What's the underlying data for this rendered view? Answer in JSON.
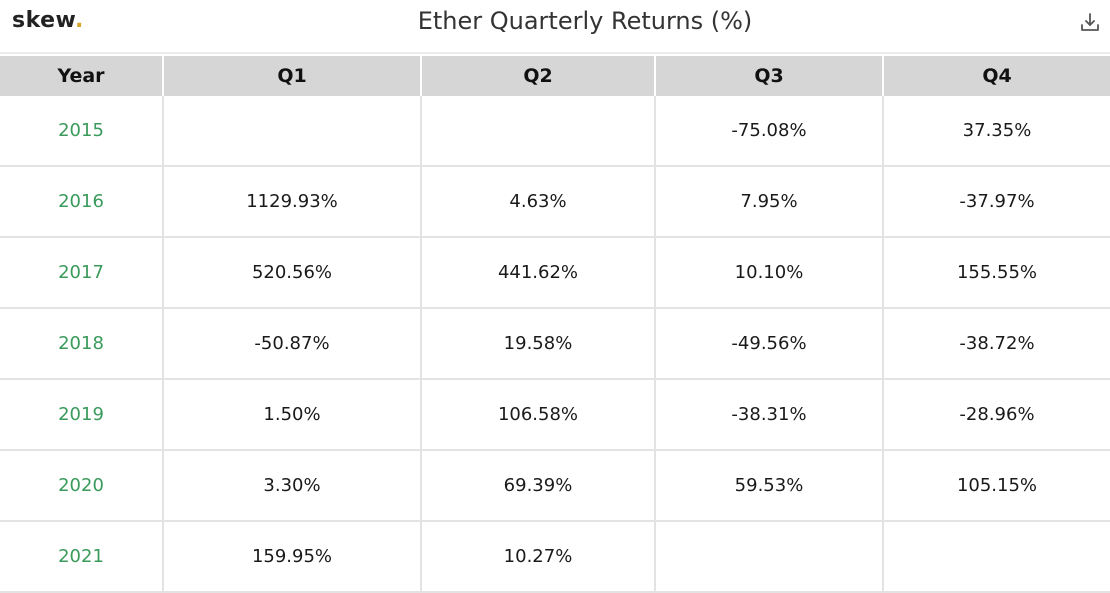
{
  "header": {
    "logo_text": "skew",
    "logo_dot": ".",
    "title": "Ether Quarterly Returns (%)",
    "download_icon": "download-icon"
  },
  "colors": {
    "year_text": "#3a9a5b",
    "logo_dot": "#d4a72c",
    "header_bg": "#d6d6d6"
  },
  "chart_data": {
    "type": "table",
    "title": "Ether Quarterly Returns (%)",
    "columns": [
      "Year",
      "Q1",
      "Q2",
      "Q3",
      "Q4"
    ],
    "rows": [
      {
        "year": "2015",
        "q1": "",
        "q2": "",
        "q3": "-75.08%",
        "q4": "37.35%"
      },
      {
        "year": "2016",
        "q1": "1129.93%",
        "q2": "4.63%",
        "q3": "7.95%",
        "q4": "-37.97%"
      },
      {
        "year": "2017",
        "q1": "520.56%",
        "q2": "441.62%",
        "q3": "10.10%",
        "q4": "155.55%"
      },
      {
        "year": "2018",
        "q1": "-50.87%",
        "q2": "19.58%",
        "q3": "-49.56%",
        "q4": "-38.72%"
      },
      {
        "year": "2019",
        "q1": "1.50%",
        "q2": "106.58%",
        "q3": "-38.31%",
        "q4": "-28.96%"
      },
      {
        "year": "2020",
        "q1": "3.30%",
        "q2": "69.39%",
        "q3": "59.53%",
        "q4": "105.15%"
      },
      {
        "year": "2021",
        "q1": "159.95%",
        "q2": "10.27%",
        "q3": "",
        "q4": ""
      }
    ]
  }
}
